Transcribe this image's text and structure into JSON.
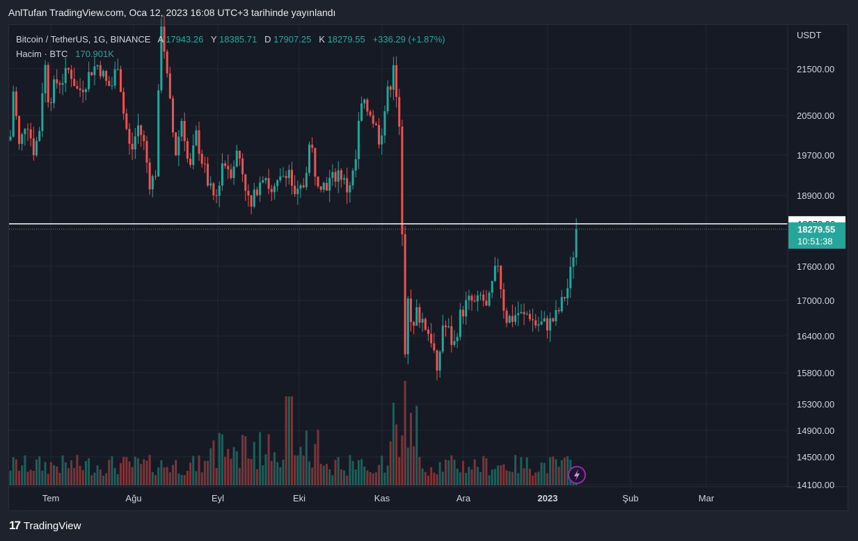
{
  "header": {
    "publish_text": "AnlTufan TradingView.com, Oca 12, 2023 16:08 UTC+3 tarihinde yayınlandı"
  },
  "legend": {
    "symbol": "Bitcoin / TetherUS, 1G, BINANCE",
    "open_key": "A",
    "open_value": "17943.26",
    "high_key": "Y",
    "high_value": "18385.71",
    "low_key": "D",
    "low_value": "17907.25",
    "close_key": "K",
    "close_value": "18279.55",
    "change": "+336.29 (+1.87%)",
    "volume_label": "Hacim · BTC",
    "volume_value": "170.901K"
  },
  "footer": {
    "brand": "TradingView"
  },
  "colors": {
    "up": "#26a69a",
    "down": "#ef5350",
    "background": "#161a25",
    "grid": "#232734"
  },
  "chart_data": {
    "type": "candlestick",
    "y_axis_title": "USDT",
    "y_ticks": [
      14100,
      14500,
      14900,
      15300,
      15800,
      16400,
      17000,
      17600,
      18900,
      19700,
      20500,
      21500
    ],
    "y_tick_labels": [
      "14100.00",
      "14500.00",
      "14900.00",
      "15300.00",
      "15800.00",
      "16400.00",
      "17000.00",
      "17600.00",
      "18900.00",
      "19700.00",
      "20500.00",
      "21500.00"
    ],
    "x_ticks": [
      "Tem",
      "Ağu",
      "Eyl",
      "Eki",
      "Kas",
      "Ara",
      "2023",
      "Şub",
      "Mar"
    ],
    "price_line": {
      "value": 18378.8,
      "label": "18378.80"
    },
    "last_price": {
      "value": 18279.55,
      "label": "18279.55",
      "countdown": "10:51:38"
    },
    "events_icon": "lightning-icon",
    "grid": true
  }
}
